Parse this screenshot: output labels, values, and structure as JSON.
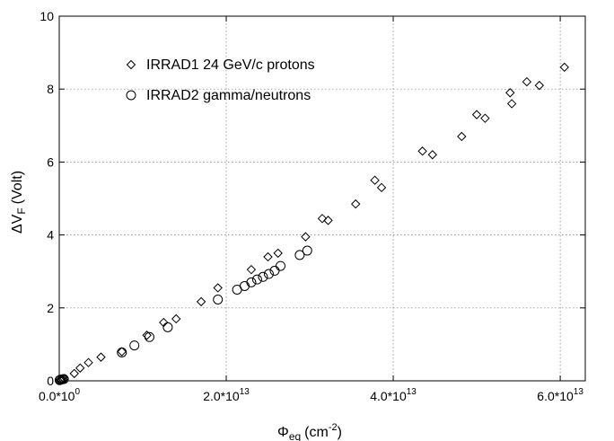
{
  "chart_data": {
    "type": "scatter",
    "xlabel": {
      "base": "Φ",
      "sub": "eq",
      "unit": "(cm",
      "sup": "-2",
      "close": ")"
    },
    "ylabel": {
      "base": "ΔV",
      "sub": "F",
      "unit": "(Volt)"
    },
    "xlim": [
      0,
      63000000000000.0
    ],
    "ylim": [
      0,
      10
    ],
    "grid": true,
    "legend_position": "top-left",
    "x_ticks": [
      {
        "value": 0,
        "mant": "0.0*10",
        "exp": "0"
      },
      {
        "value": 20000000000000.0,
        "mant": "2.0*10",
        "exp": "13"
      },
      {
        "value": 40000000000000.0,
        "mant": "4.0*10",
        "exp": "13"
      },
      {
        "value": 60000000000000.0,
        "mant": "6.0*10",
        "exp": "13"
      }
    ],
    "y_ticks": [
      {
        "value": 0,
        "label": "0"
      },
      {
        "value": 2,
        "label": "2"
      },
      {
        "value": 4,
        "label": "4"
      },
      {
        "value": 6,
        "label": "6"
      },
      {
        "value": 8,
        "label": "8"
      },
      {
        "value": 10,
        "label": "10"
      }
    ],
    "series": [
      {
        "name": "IRRAD1 24 GeV/c protons",
        "marker": "diamond",
        "color": "#000000",
        "points": [
          [
            100000000000.0,
            0.02
          ],
          [
            200000000000.0,
            0.03
          ],
          [
            400000000000.0,
            0.04
          ],
          [
            600000000000.0,
            0.06
          ],
          [
            1800000000000.0,
            0.2
          ],
          [
            2500000000000.0,
            0.35
          ],
          [
            3500000000000.0,
            0.5
          ],
          [
            5000000000000.0,
            0.65
          ],
          [
            7500000000000.0,
            0.8
          ],
          [
            10500000000000.0,
            1.25
          ],
          [
            12500000000000.0,
            1.6
          ],
          [
            14000000000000.0,
            1.7
          ],
          [
            17000000000000.0,
            2.17
          ],
          [
            19000000000000.0,
            2.55
          ],
          [
            23000000000000.0,
            3.05
          ],
          [
            25000000000000.0,
            3.4
          ],
          [
            26200000000000.0,
            3.5
          ],
          [
            29500000000000.0,
            3.95
          ],
          [
            31500000000000.0,
            4.45
          ],
          [
            32200000000000.0,
            4.4
          ],
          [
            35500000000000.0,
            4.85
          ],
          [
            37800000000000.0,
            5.5
          ],
          [
            38600000000000.0,
            5.3
          ],
          [
            43500000000000.0,
            6.3
          ],
          [
            44700000000000.0,
            6.2
          ],
          [
            48200000000000.0,
            6.7
          ],
          [
            50000000000000.0,
            7.3
          ],
          [
            51000000000000.0,
            7.2
          ],
          [
            54000000000000.0,
            7.9
          ],
          [
            54200000000000.0,
            7.6
          ],
          [
            56000000000000.0,
            8.2
          ],
          [
            57500000000000.0,
            8.1
          ],
          [
            60500000000000.0,
            8.6
          ]
        ]
      },
      {
        "name": "IRRAD2 gamma/neutrons",
        "marker": "circle",
        "color": "#000000",
        "points": [
          [
            50000000000.0,
            0.02
          ],
          [
            150000000000.0,
            0.03
          ],
          [
            350000000000.0,
            0.04
          ],
          [
            550000000000.0,
            0.05
          ],
          [
            7500000000000.0,
            0.78
          ],
          [
            9000000000000.0,
            0.97
          ],
          [
            10800000000000.0,
            1.2
          ],
          [
            13000000000000.0,
            1.47
          ],
          [
            19000000000000.0,
            2.23
          ],
          [
            21300000000000.0,
            2.5
          ],
          [
            22200000000000.0,
            2.6
          ],
          [
            23000000000000.0,
            2.7
          ],
          [
            23700000000000.0,
            2.78
          ],
          [
            24400000000000.0,
            2.85
          ],
          [
            25100000000000.0,
            2.93
          ],
          [
            25800000000000.0,
            3.02
          ],
          [
            26500000000000.0,
            3.15
          ],
          [
            28800000000000.0,
            3.45
          ],
          [
            29700000000000.0,
            3.57
          ]
        ]
      }
    ]
  }
}
